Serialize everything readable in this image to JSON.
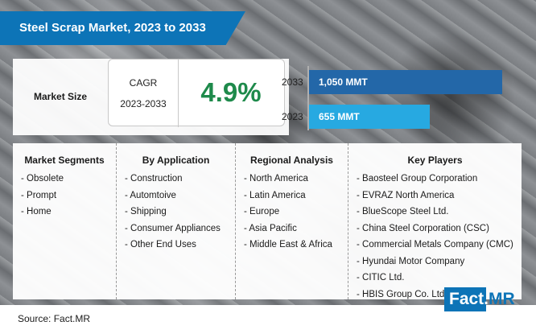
{
  "title": "Steel Scrap Market, 2023 to 2033",
  "market_size": {
    "label": "Market Size",
    "cagr_label": "CAGR",
    "cagr_period": "2023-2033",
    "cagr_value": "4.9%"
  },
  "colors": {
    "brand_blue": "#0d74b7",
    "bar_2033": "#2367a8",
    "bar_2023": "#27a9e1",
    "cagr_green": "#1e8a4b"
  },
  "chart_data": {
    "type": "bar",
    "orientation": "horizontal",
    "title": "Market Size",
    "unit": "MMT",
    "categories": [
      "2033",
      "2023"
    ],
    "values": [
      1050,
      655
    ],
    "data_labels": [
      "1,050 MMT",
      "655 MMT"
    ],
    "xlim": [
      0,
      1050
    ]
  },
  "columns": [
    {
      "heading": "Market Segments",
      "items": [
        "- Obsolete",
        "- Prompt",
        "- Home"
      ]
    },
    {
      "heading": "By Application",
      "items": [
        "- Construction",
        "- Automtoive",
        "- Shipping",
        "- Consumer Appliances",
        "- Other End Uses"
      ]
    },
    {
      "heading": "Regional Analysis",
      "items": [
        "- North America",
        "- Latin America",
        "- Europe",
        "- Asia Pacific",
        "- Middle East & Africa"
      ]
    },
    {
      "heading": "Key Players",
      "items": [
        "- Baosteel Group Corporation",
        "- EVRAZ North America",
        "- BlueScope Steel Ltd.",
        "- China Steel Corporation (CSC)",
        "- Commercial Metals Company (CMC)",
        "- Hyundai Motor Company",
        "- CITIC Ltd.",
        "- HBIS Group Co. Ltd."
      ]
    }
  ],
  "source": "Source: Fact.MR",
  "brand": {
    "part1": "Fact.",
    "part2": "MR"
  }
}
